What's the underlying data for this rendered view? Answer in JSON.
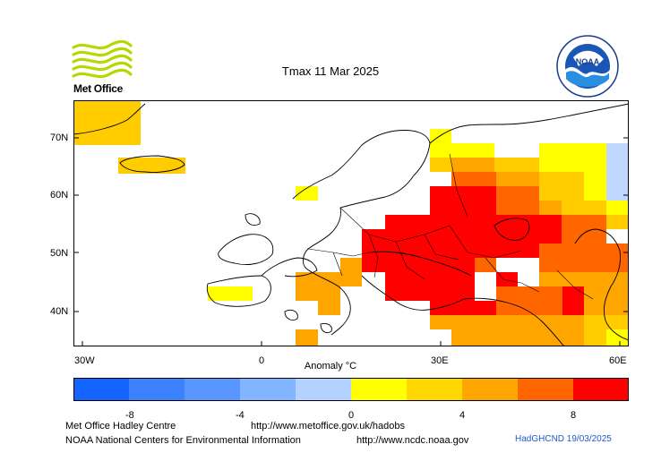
{
  "title": "Tmax 11 Mar 2025",
  "logos": {
    "met_office_text": "Met Office",
    "noaa_text": "NOAA"
  },
  "map": {
    "lon_labels": [
      "30W",
      "0",
      "30E",
      "60E"
    ],
    "lat_labels": [
      "70N",
      "60N",
      "50N",
      "40N"
    ],
    "colors": {
      "light_yellow": "#ffff00",
      "yellow_orange": "#ffcc00",
      "orange": "#ffa500",
      "dark_orange": "#ff6600",
      "red": "#ff0000",
      "pale_blue": "#c0d8ff"
    }
  },
  "colorbar": {
    "label": "Anomaly °C",
    "ticks": [
      "-8",
      "-4",
      "0",
      "4",
      "8"
    ],
    "colors": [
      "#1464ff",
      "#3c82ff",
      "#5a96ff",
      "#82b4ff",
      "#b4d2ff",
      "#ffff00",
      "#ffd700",
      "#ffa500",
      "#ff6600",
      "#ff0000"
    ]
  },
  "footer": {
    "line1_left": "Met Office Hadley Centre",
    "line1_right": "http://www.metoffice.gov.uk/hadobs",
    "line2_left": "NOAA National Centers for Environmental Information",
    "line2_right": "http://www.ncdc.noaa.gov",
    "credit": "HadGHCND 19/03/2025"
  }
}
